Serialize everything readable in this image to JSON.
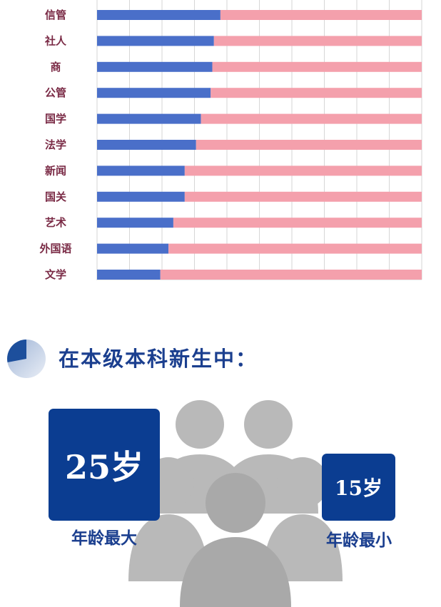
{
  "chart_data": {
    "type": "bar",
    "stacked": true,
    "orientation": "horizontal",
    "categories": [
      "信管",
      "社人",
      "商",
      "公管",
      "国学",
      "法学",
      "新闻",
      "国关",
      "艺术",
      "外国语",
      "文学"
    ],
    "series": [
      {
        "values": [
          38,
          36,
          35.5,
          35,
          32,
          30.5,
          27,
          27,
          23.5,
          22,
          19.5
        ]
      },
      {
        "values": [
          62,
          64,
          64.5,
          65,
          68,
          69.5,
          73,
          73,
          76.5,
          78,
          80.5
        ]
      }
    ],
    "xlim": [
      0,
      100
    ],
    "grid": true,
    "colors": [
      "#4a6fc9",
      "#f4a0ac"
    ]
  },
  "section": {
    "title": "在本级本科新生中：",
    "icon": "pie-chart-icon"
  },
  "ages": {
    "max_value": "25岁",
    "max_label": "年龄最大",
    "min_value": "15岁",
    "min_label": "年龄最小"
  },
  "decor": {
    "people_icon": "people-group-icon",
    "people_color": "#b7b7b7"
  }
}
